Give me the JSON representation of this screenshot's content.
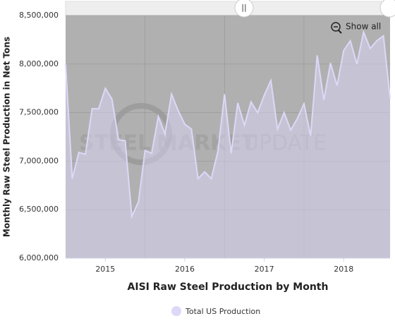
{
  "chart_data": {
    "type": "area",
    "xlabel": "AISI Raw Steel Production by Month",
    "ylabel": "Monthly Raw Steel Production in Net Tons",
    "watermark": [
      "STEEL",
      "MARKET",
      "UPDATE"
    ],
    "button": "Show all",
    "series": [
      {
        "name": "Total US Production",
        "color": "#dcd8f8",
        "values": [
          8000000,
          6820000,
          7090000,
          7070000,
          7540000,
          7540000,
          7750000,
          7640000,
          7220000,
          7210000,
          6430000,
          6580000,
          7110000,
          7080000,
          7460000,
          7280000,
          7690000,
          7520000,
          7380000,
          7330000,
          6820000,
          6890000,
          6820000,
          7100000,
          7690000,
          7080000,
          7600000,
          7370000,
          7610000,
          7500000,
          7680000,
          7830000,
          7330000,
          7500000,
          7320000,
          7440000,
          7590000,
          7260000,
          8090000,
          7630000,
          8010000,
          7780000,
          8140000,
          8240000,
          8000000,
          8330000,
          8160000,
          8240000,
          8290000,
          7650000
        ]
      }
    ],
    "xlim": [
      0,
      49
    ],
    "xticks": [
      {
        "value": 6,
        "label": "2015"
      },
      {
        "value": 18,
        "label": "2016"
      },
      {
        "value": 30,
        "label": "2017"
      },
      {
        "value": 42,
        "label": "2018"
      }
    ],
    "xgrid": [
      12,
      24,
      36
    ],
    "ylim": [
      6000000,
      8500000
    ],
    "yticks": [
      {
        "value": 6000000,
        "label": "6,000,000"
      },
      {
        "value": 6500000,
        "label": "6,500,000"
      },
      {
        "value": 7000000,
        "label": "7,000,000"
      },
      {
        "value": 7500000,
        "label": "7,500,000"
      },
      {
        "value": 8000000,
        "label": "8,000,000"
      },
      {
        "value": 8500000,
        "label": "8,500,000"
      }
    ],
    "grid": true
  }
}
